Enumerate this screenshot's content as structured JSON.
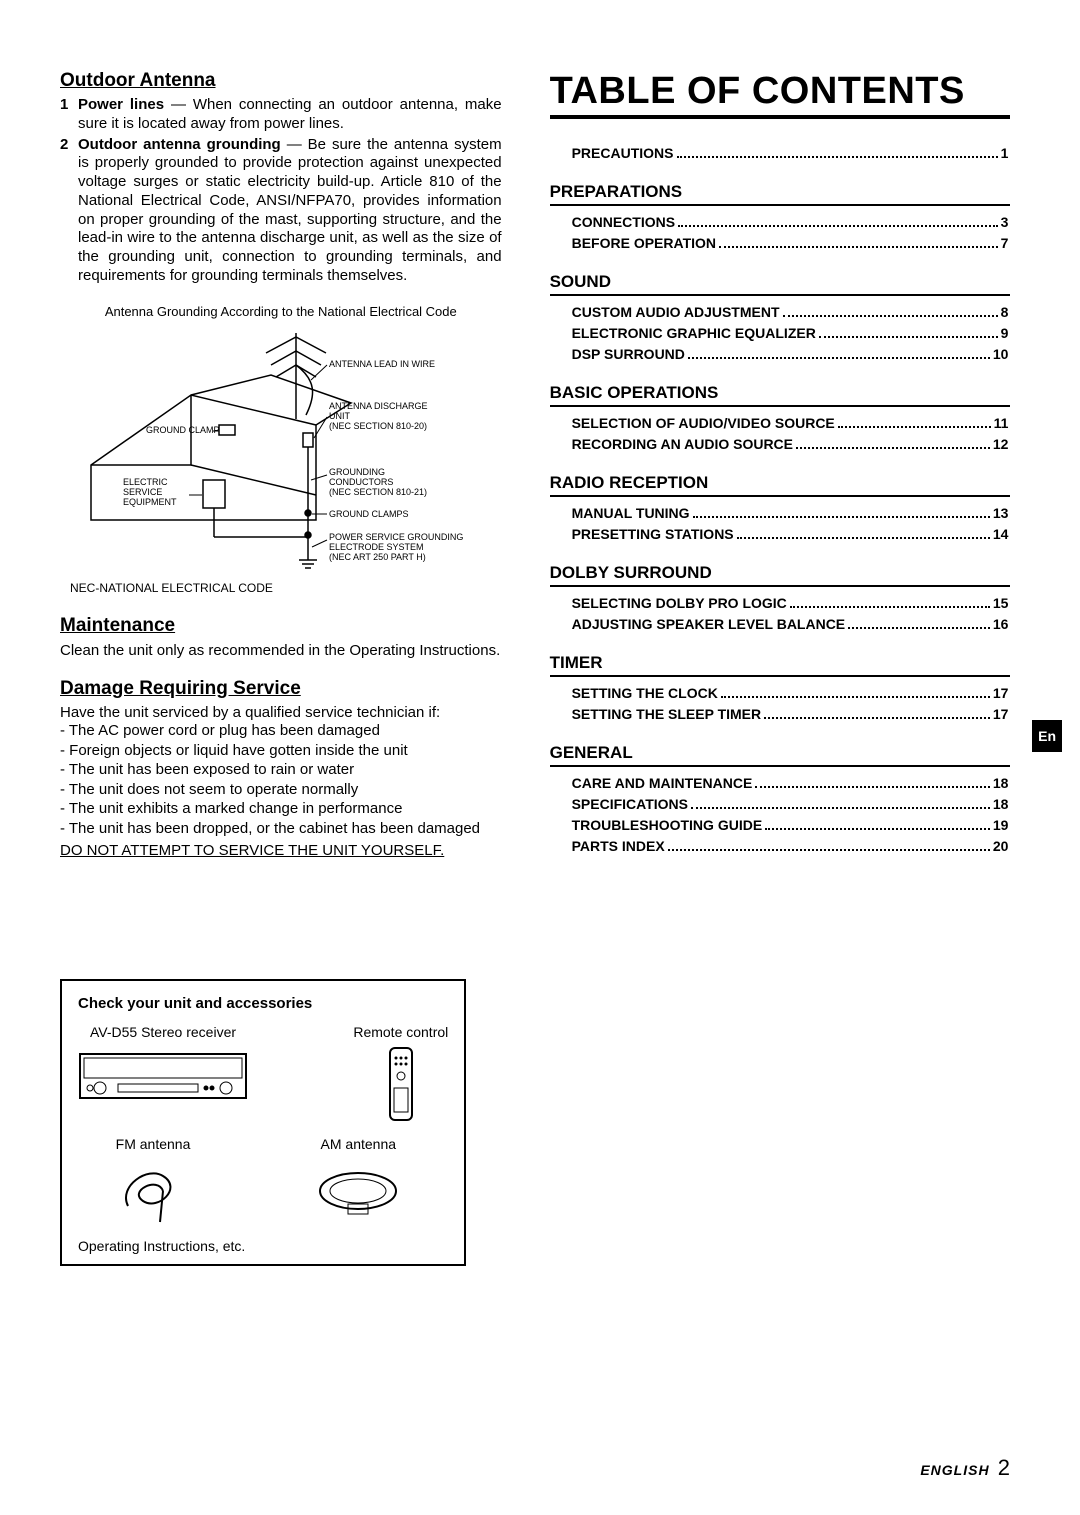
{
  "left": {
    "outdoor_antenna": {
      "heading": "Outdoor Antenna",
      "items": [
        {
          "num": "1",
          "lead": "Power lines",
          "text": " — When connecting an outdoor antenna, make sure it is located away from power lines."
        },
        {
          "num": "2",
          "lead": "Outdoor antenna grounding",
          "text": " — Be sure the antenna system is properly grounded to provide protection against unexpected voltage surges or static electricity build-up. Article 810 of the National Electrical Code, ANSI/NFPA70, provides information on proper grounding of the mast, supporting structure, and the lead-in wire to the antenna discharge unit, as well as the size of the grounding unit, connection to grounding terminals, and requirements for grounding terminals themselves."
        }
      ],
      "caption": "Antenna Grounding According to the National Electrical Code",
      "labels": {
        "lead_in": "ANTENNA LEAD IN WIRE",
        "discharge1": "ANTENNA DISCHARGE",
        "discharge2": "UNIT",
        "discharge3": "(NEC SECTION 810-20)",
        "ground_clamp": "GROUND CLAMP",
        "electric1": "ELECTRIC",
        "electric2": "SERVICE",
        "electric3": "EQUIPMENT",
        "conductors1": "GROUNDING",
        "conductors2": "CONDUCTORS",
        "conductors3": "(NEC SECTION 810-21)",
        "ground_clamps": "GROUND CLAMPS",
        "power1": "POWER SERVICE GROUNDING",
        "power2": "ELECTRODE SYSTEM",
        "power3": "(NEC ART 250 PART H)"
      },
      "nec_note": "NEC-NATIONAL ELECTRICAL CODE"
    },
    "maintenance": {
      "heading": "Maintenance",
      "body": "Clean the unit only as recommended in the Operating Instructions."
    },
    "damage": {
      "heading": "Damage Requiring Service",
      "intro": "Have the unit serviced by a qualified service technician if:",
      "points": [
        "- The AC power cord or plug has been damaged",
        "- Foreign objects or liquid have gotten inside the unit",
        "- The unit has been exposed to rain or water",
        "- The unit does not seem to operate normally",
        "- The unit exhibits a marked change in performance",
        "- The unit has been dropped, or the cabinet has been damaged"
      ],
      "warning": "DO NOT ATTEMPT TO SERVICE THE UNIT YOURSELF."
    },
    "accessories": {
      "title": "Check your unit and accessories",
      "receiver": "AV-D55 Stereo receiver",
      "remote": "Remote control",
      "fm": "FM antenna",
      "am": "AM antenna",
      "footer": "Operating Instructions, etc."
    }
  },
  "toc": {
    "title": "TABLE OF CONTENTS",
    "top_entries": [
      {
        "label": "PRECAUTIONS",
        "page": "1"
      }
    ],
    "sections": [
      {
        "head": "PREPARATIONS",
        "entries": [
          {
            "label": "CONNECTIONS",
            "page": "3"
          },
          {
            "label": "BEFORE OPERATION",
            "page": "7"
          }
        ]
      },
      {
        "head": "SOUND",
        "entries": [
          {
            "label": "CUSTOM AUDIO ADJUSTMENT",
            "page": "8"
          },
          {
            "label": "ELECTRONIC GRAPHIC EQUALIZER",
            "page": "9"
          },
          {
            "label": "DSP SURROUND",
            "page": "10"
          }
        ]
      },
      {
        "head": "BASIC OPERATIONS",
        "entries": [
          {
            "label": "SELECTION OF AUDIO/VIDEO SOURCE",
            "page": "11"
          },
          {
            "label": "RECORDING AN AUDIO SOURCE",
            "page": "12"
          }
        ]
      },
      {
        "head": "RADIO RECEPTION",
        "entries": [
          {
            "label": "MANUAL TUNING",
            "page": "13"
          },
          {
            "label": "PRESETTING STATIONS",
            "page": "14"
          }
        ]
      },
      {
        "head": "DOLBY SURROUND",
        "entries": [
          {
            "label": "SELECTING DOLBY PRO LOGIC",
            "page": "15"
          },
          {
            "label": "ADJUSTING SPEAKER LEVEL BALANCE",
            "page": "16"
          }
        ]
      },
      {
        "head": "TIMER",
        "entries": [
          {
            "label": "SETTING THE CLOCK",
            "page": "17"
          },
          {
            "label": "SETTING THE SLEEP TIMER",
            "page": "17"
          }
        ]
      },
      {
        "head": "GENERAL",
        "entries": [
          {
            "label": "CARE AND MAINTENANCE",
            "page": "18"
          },
          {
            "label": "SPECIFICATIONS",
            "page": "18"
          },
          {
            "label": "TROUBLESHOOTING GUIDE",
            "page": "19"
          },
          {
            "label": "PARTS INDEX",
            "page": "20"
          }
        ]
      }
    ]
  },
  "tab": "En",
  "footer": {
    "lang": "ENGLISH",
    "page": "2"
  }
}
